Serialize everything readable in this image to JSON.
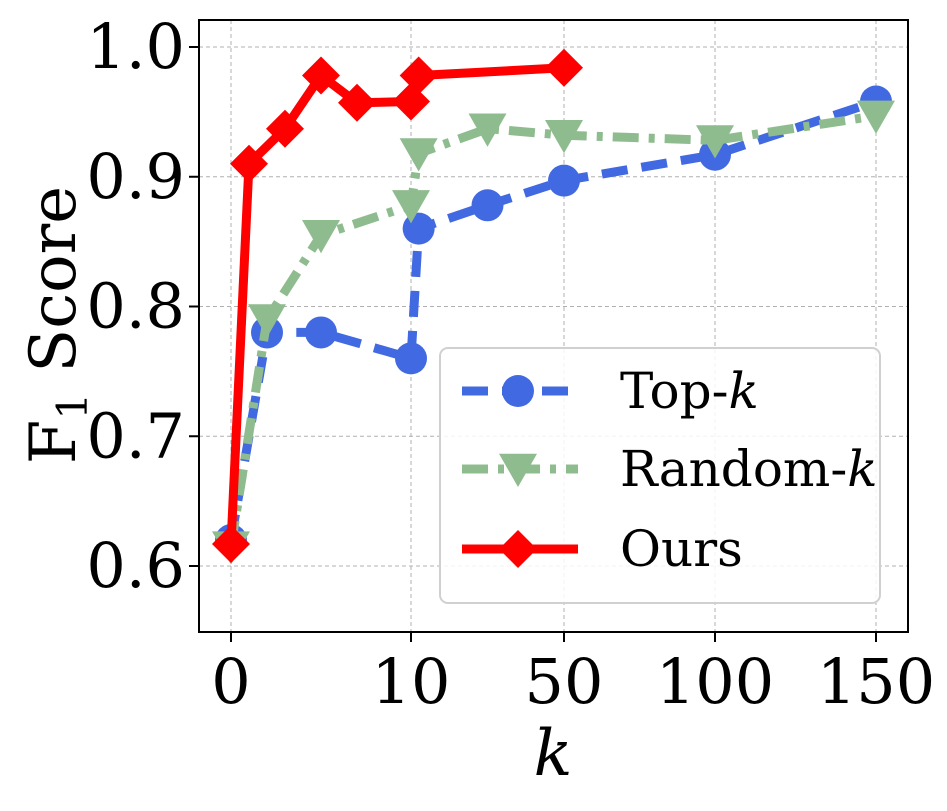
{
  "chart_data": {
    "type": "line",
    "title": "",
    "xlabel": "k",
    "ylabel": "F",
    "ylabel_subscript": "1",
    "ylabel_suffix": " Score",
    "x_ticks": [
      {
        "value": 0,
        "label": "0"
      },
      {
        "value": 10,
        "label": "10"
      },
      {
        "value": 50,
        "label": "50"
      },
      {
        "value": 100,
        "label": "100"
      },
      {
        "value": 150,
        "label": "150"
      }
    ],
    "y_ticks": [
      {
        "value": 0.6,
        "label": "0.6"
      },
      {
        "value": 0.7,
        "label": "0.7"
      },
      {
        "value": 0.8,
        "label": "0.8"
      },
      {
        "value": 0.9,
        "label": "0.9"
      },
      {
        "value": 1.0,
        "label": "1.0"
      }
    ],
    "ylim": [
      0.55,
      1.02
    ],
    "grid": true,
    "legend_position": "lower-right",
    "series": [
      {
        "name": "Top-",
        "name_italic": "k",
        "color": "#4169e1",
        "marker": "circle",
        "linestyle": "dashed",
        "x": [
          0,
          2,
          5,
          10,
          12,
          30,
          50,
          100,
          150
        ],
        "y": [
          0.62,
          0.78,
          0.78,
          0.76,
          0.86,
          0.878,
          0.897,
          0.917,
          0.958
        ]
      },
      {
        "name": "Random-",
        "name_italic": "k",
        "color": "#8fbc8f",
        "marker": "triangle-down",
        "linestyle": "dashdot",
        "x": [
          0,
          2,
          5,
          10,
          12,
          30,
          50,
          100,
          150
        ],
        "y": [
          0.615,
          0.79,
          0.855,
          0.878,
          0.918,
          0.937,
          0.932,
          0.928,
          0.947
        ]
      },
      {
        "name": "Ours",
        "name_italic": "",
        "color": "#ff0000",
        "marker": "diamond",
        "linestyle": "solid",
        "x": [
          0,
          1,
          3,
          5,
          7,
          10,
          12,
          50
        ],
        "y": [
          0.617,
          0.91,
          0.937,
          0.978,
          0.957,
          0.958,
          0.978,
          0.984
        ]
      }
    ]
  }
}
